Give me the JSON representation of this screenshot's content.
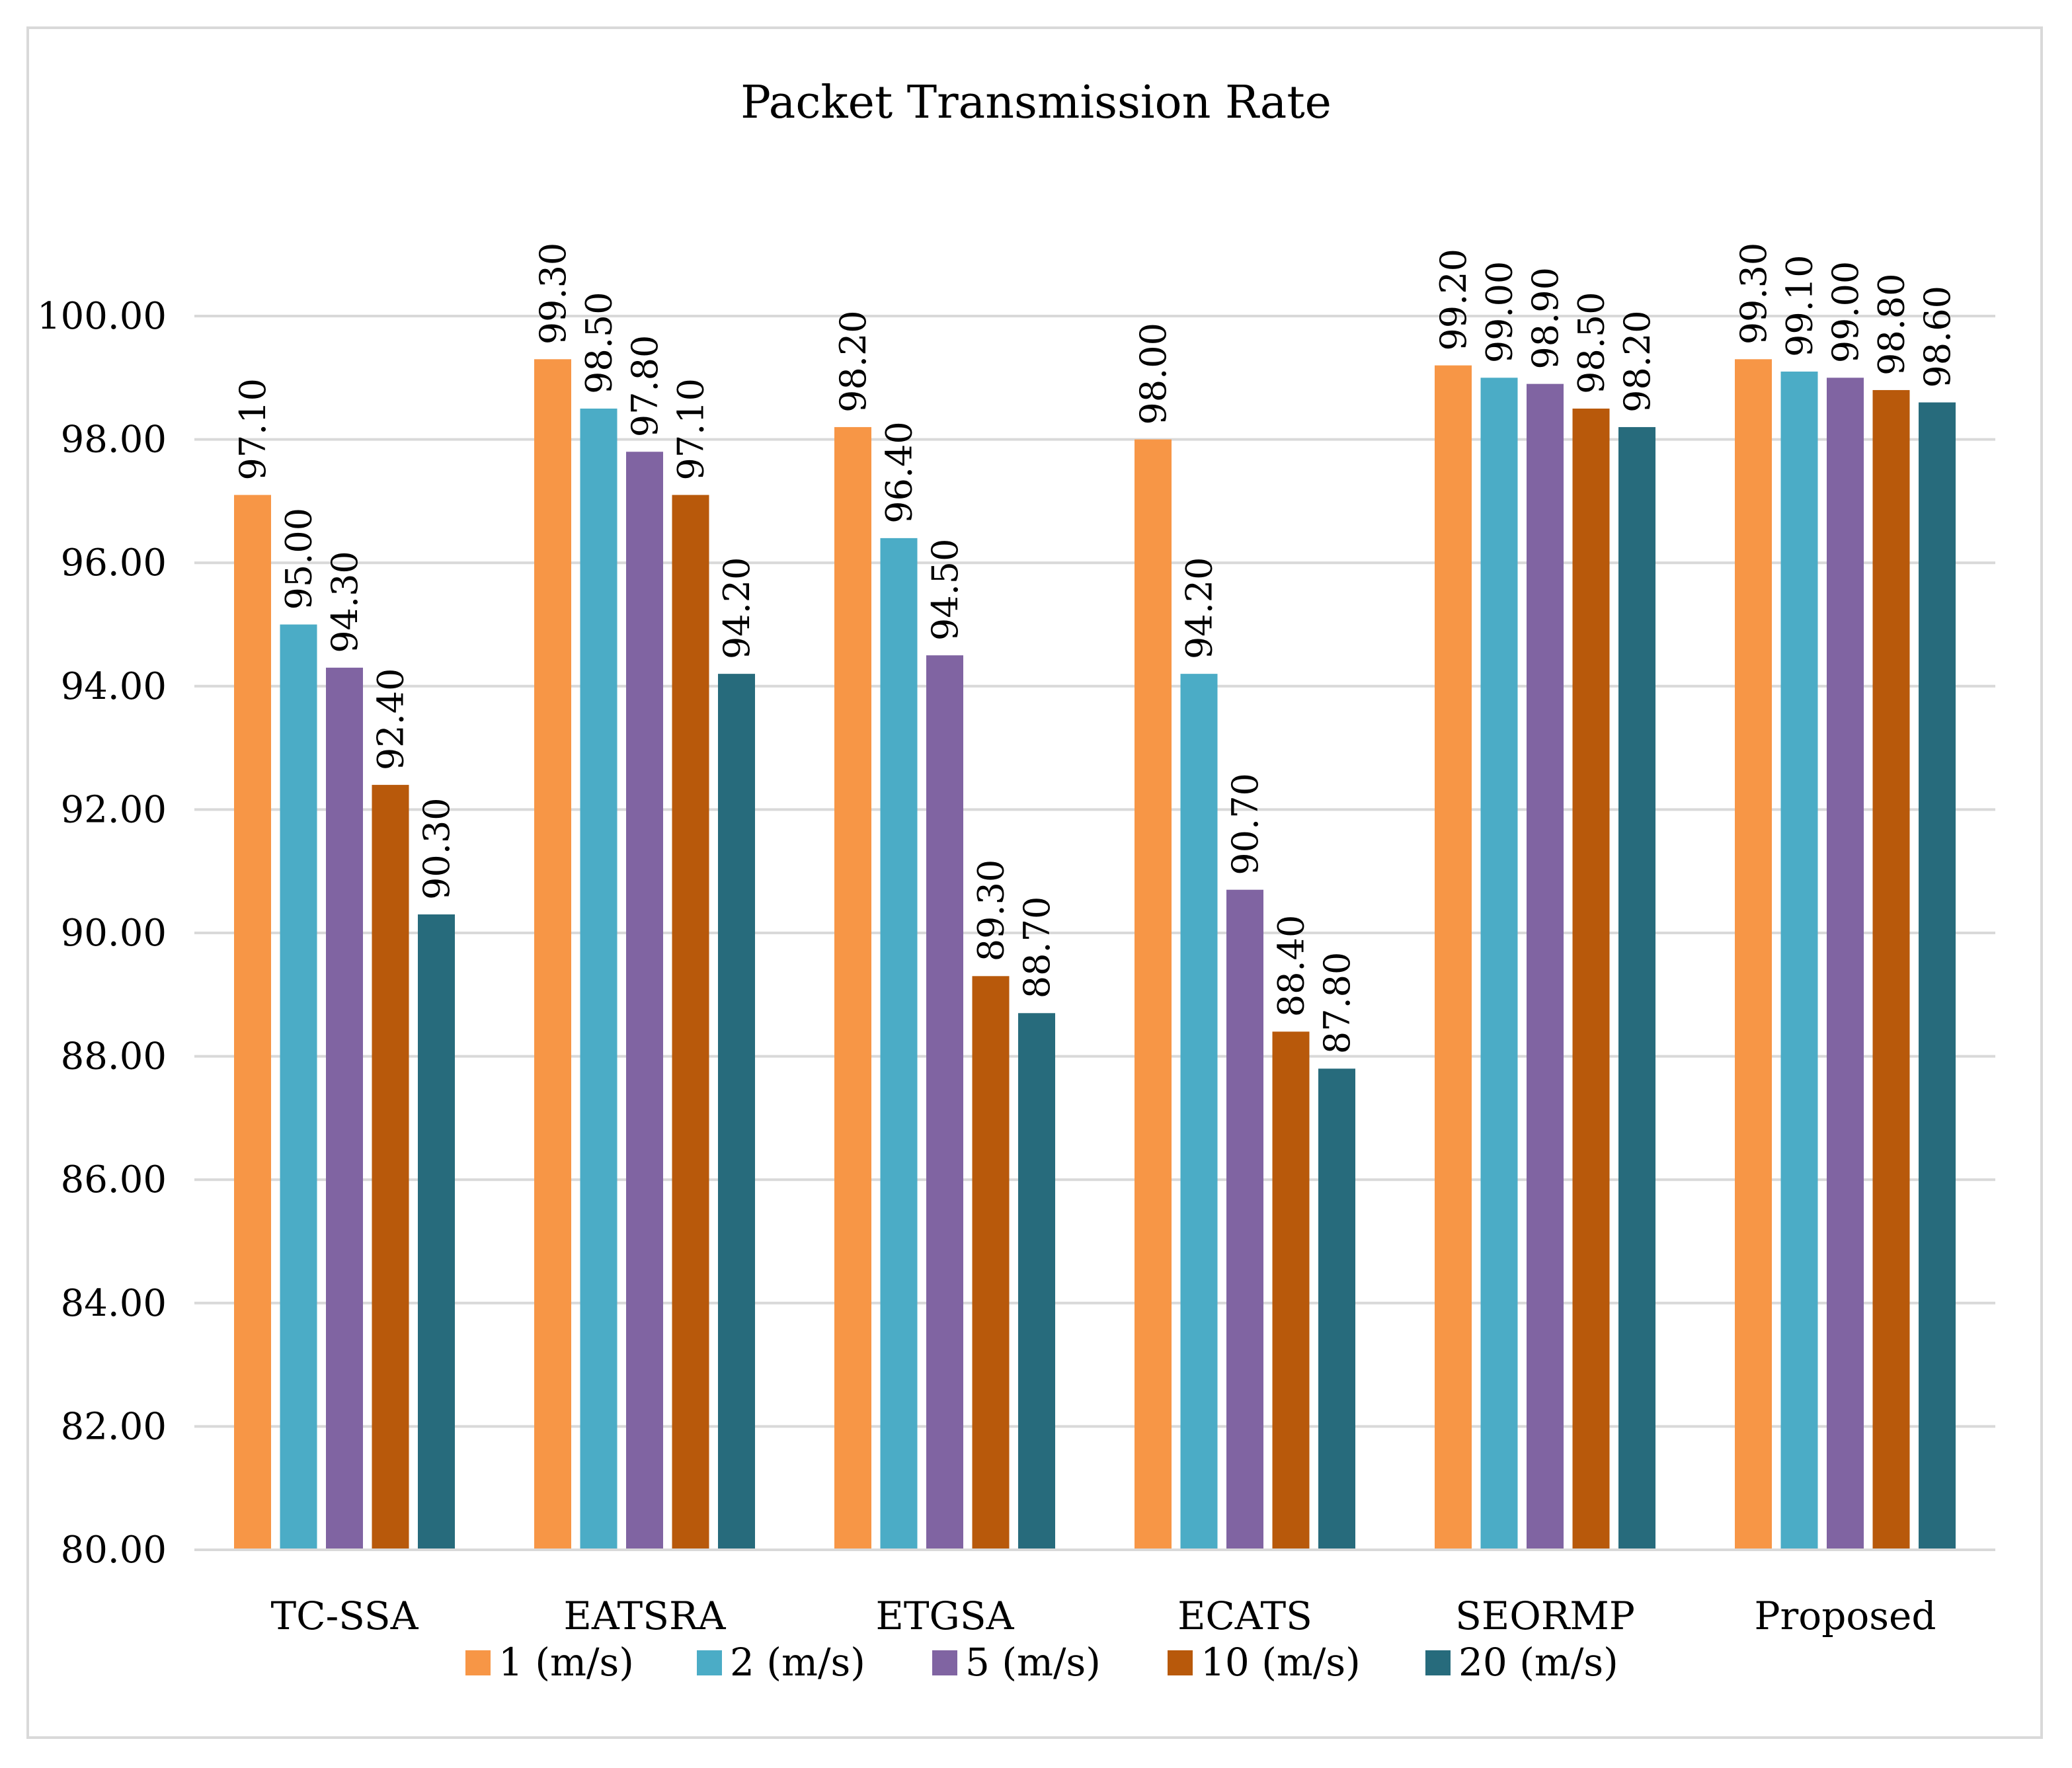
{
  "chart_data": {
    "type": "bar",
    "title": "Packet Transmission Rate",
    "xlabel": "",
    "ylabel": "",
    "categories": [
      "TC-SSA",
      "EATSRA",
      "ETGSA",
      "ECATS",
      "SEORMP",
      "Proposed"
    ],
    "series": [
      {
        "name": "1 (m/s)",
        "color": "#f79646",
        "values": [
          97.1,
          99.3,
          98.2,
          98.0,
          99.2,
          99.3
        ],
        "labels": [
          "97.10",
          "99.30",
          "98.20",
          "98.00",
          "99.20",
          "99.30"
        ]
      },
      {
        "name": "2 (m/s)",
        "color": "#4bacc6",
        "values": [
          95.0,
          98.5,
          96.4,
          94.2,
          99.0,
          99.1
        ],
        "labels": [
          "95.00",
          "98.50",
          "96.40",
          "94.20",
          "99.00",
          "99.10"
        ]
      },
      {
        "name": "5 (m/s)",
        "color": "#8064a2",
        "values": [
          94.3,
          97.8,
          94.5,
          90.7,
          98.9,
          99.0
        ],
        "labels": [
          "94.30",
          "97.80",
          "94.50",
          "90.70",
          "98.90",
          "99.00"
        ]
      },
      {
        "name": "10 (m/s)",
        "color": "#b8590b",
        "values": [
          92.4,
          97.1,
          89.3,
          88.4,
          98.5,
          98.8
        ],
        "labels": [
          "92.40",
          "97.10",
          "89.30",
          "88.40",
          "98.50",
          "98.80"
        ]
      },
      {
        "name": "20 (m/s)",
        "color": "#276b7c",
        "values": [
          90.3,
          94.2,
          88.7,
          87.8,
          98.2,
          98.6
        ],
        "labels": [
          "90.30",
          "94.20",
          "88.70",
          "87.80",
          "98.20",
          "98.60"
        ]
      }
    ],
    "yticks": [
      "80.00",
      "82.00",
      "84.00",
      "86.00",
      "88.00",
      "90.00",
      "92.00",
      "94.00",
      "96.00",
      "98.00",
      "100.00"
    ],
    "ylim": [
      80,
      102
    ],
    "grid": true,
    "legend": "bottom"
  }
}
